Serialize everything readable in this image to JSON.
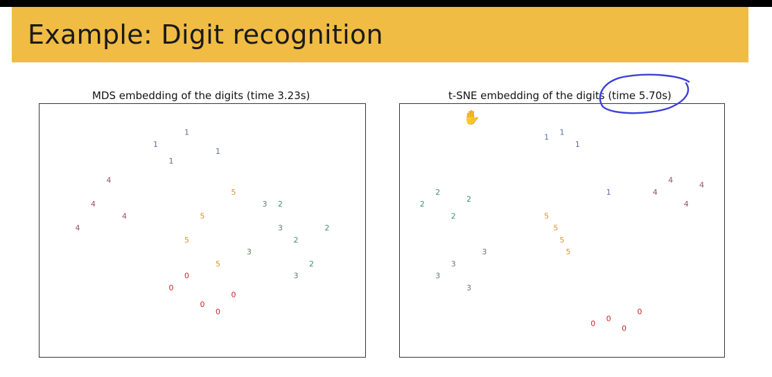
{
  "slide": {
    "title": "Example: Digit recognition"
  },
  "colors": {
    "title_band": "#f0bc43",
    "digit_0": "#c62828",
    "digit_1": "#5a6aa0",
    "digit_2": "#3f8f6e",
    "digit_3": "#5d7f5f",
    "digit_4": "#9a4a6f",
    "digit_5": "#e3922a",
    "annotation": "#3b3fd6"
  },
  "annotation": {
    "type": "hand-drawn circle",
    "target": "t-SNE title time"
  },
  "cursor": {
    "icon": "hand-cursor-icon"
  },
  "chart_data": [
    {
      "type": "scatter",
      "title": "MDS embedding of the digits (time 3.23s)",
      "xlabel": "",
      "ylabel": "",
      "grid": false,
      "legend": "none",
      "series": [
        {
          "name": "0",
          "label": "0",
          "x": [
            0.4,
            0.5,
            0.6,
            0.45,
            0.55
          ],
          "y": [
            0.25,
            0.18,
            0.22,
            0.3,
            0.15
          ]
        },
        {
          "name": "1",
          "label": "1",
          "x": [
            0.35,
            0.45,
            0.55,
            0.4
          ],
          "y": [
            0.85,
            0.9,
            0.82,
            0.78
          ]
        },
        {
          "name": "2",
          "label": "2",
          "x": [
            0.8,
            0.9,
            0.85,
            0.75
          ],
          "y": [
            0.45,
            0.5,
            0.35,
            0.6
          ]
        },
        {
          "name": "3",
          "label": "3",
          "x": [
            0.7,
            0.75,
            0.8,
            0.65
          ],
          "y": [
            0.6,
            0.5,
            0.3,
            0.4
          ]
        },
        {
          "name": "4",
          "label": "4",
          "x": [
            0.15,
            0.2,
            0.25,
            0.1
          ],
          "y": [
            0.6,
            0.7,
            0.55,
            0.5
          ]
        },
        {
          "name": "5",
          "label": "5",
          "x": [
            0.45,
            0.5,
            0.55,
            0.6
          ],
          "y": [
            0.45,
            0.55,
            0.35,
            0.65
          ]
        }
      ]
    },
    {
      "type": "scatter",
      "title": "t-SNE embedding of the digits (time 5.70s)",
      "xlabel": "",
      "ylabel": "",
      "grid": false,
      "legend": "none",
      "series": [
        {
          "name": "0",
          "label": "0",
          "x": [
            0.6,
            0.65,
            0.7,
            0.75
          ],
          "y": [
            0.1,
            0.12,
            0.08,
            0.15
          ]
        },
        {
          "name": "1",
          "label": "1",
          "x": [
            0.45,
            0.5,
            0.55,
            0.65
          ],
          "y": [
            0.88,
            0.9,
            0.85,
            0.65
          ]
        },
        {
          "name": "2",
          "label": "2",
          "x": [
            0.05,
            0.1,
            0.15,
            0.2
          ],
          "y": [
            0.6,
            0.65,
            0.55,
            0.62
          ]
        },
        {
          "name": "3",
          "label": "3",
          "x": [
            0.1,
            0.15,
            0.2,
            0.25
          ],
          "y": [
            0.3,
            0.35,
            0.25,
            0.4
          ]
        },
        {
          "name": "4",
          "label": "4",
          "x": [
            0.8,
            0.85,
            0.9,
            0.95
          ],
          "y": [
            0.65,
            0.7,
            0.6,
            0.68
          ]
        },
        {
          "name": "5",
          "label": "5",
          "x": [
            0.45,
            0.48,
            0.5,
            0.52
          ],
          "y": [
            0.55,
            0.5,
            0.45,
            0.4
          ]
        }
      ]
    }
  ]
}
